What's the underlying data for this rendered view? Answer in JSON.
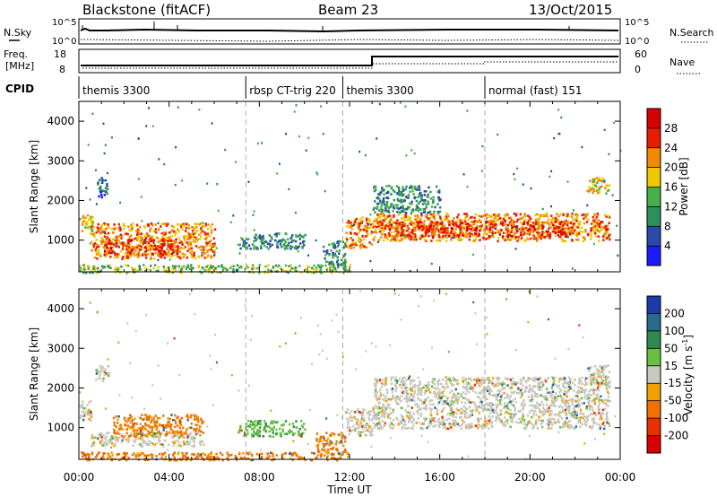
{
  "header": {
    "station": "Blackstone (fitACF)",
    "beam": "Beam 23",
    "date": "13/Oct/2015"
  },
  "noise_panel": {
    "left_label": "N.Sky",
    "right_label": "N.Search",
    "ticks": [
      "10^5",
      "10^0"
    ]
  },
  "freq_panel": {
    "left_label": "Freq.",
    "left_unit": "[MHz]",
    "left_ticks": [
      "18",
      "8"
    ],
    "right_label": "Nave",
    "right_ticks": [
      "60",
      "0"
    ]
  },
  "cpid_panel": {
    "label": "CPID",
    "segments": [
      {
        "label": "themis 3300",
        "start_h": 0.0
      },
      {
        "label": "rbsp CT-trig 220",
        "start_h": 7.4
      },
      {
        "label": "themis 3300",
        "start_h": 11.7
      },
      {
        "label": "normal (fast) 151",
        "start_h": 18.0
      }
    ]
  },
  "x_axis": {
    "label": "Time UT",
    "ticks": [
      "00:00",
      "04:00",
      "08:00",
      "12:00",
      "16:00",
      "20:00",
      "00:00"
    ]
  },
  "colorbar_power": {
    "label": "Power [dB]",
    "ticks": [
      "4",
      "8",
      "12",
      "16",
      "20",
      "24",
      "28"
    ],
    "colors": [
      "#1a1aff",
      "#2a4aa8",
      "#2f8f5a",
      "#46b04a",
      "#f0c800",
      "#f08a00",
      "#e81c00",
      "#d60000"
    ]
  },
  "colorbar_velocity": {
    "label": "Velocity [m s",
    "label_sup": "-1",
    "label_end": "]",
    "ticks": [
      "200",
      "100",
      "50",
      "15",
      "-15",
      "-50",
      "-100",
      "-200"
    ],
    "colors": [
      "#1b3ca8",
      "#2a6a8a",
      "#2e8a4e",
      "#68c040",
      "#c8c8c0",
      "#f0a000",
      "#f07000",
      "#e83000",
      "#d80000"
    ]
  },
  "chart_data": [
    {
      "type": "heatmap",
      "title": "Power",
      "xlabel": "",
      "ylabel": "Slant Range [km]",
      "xlim_hours": [
        0,
        24
      ],
      "ylim_km": [
        200,
        4500
      ],
      "yticks": [
        "1000",
        "2000",
        "3000",
        "4000"
      ],
      "colorbar": "Power [dB]",
      "regions": [
        {
          "t": [
            0.0,
            0.6
          ],
          "r": [
            1200,
            1700
          ],
          "level": 4
        },
        {
          "t": [
            0.8,
            1.3
          ],
          "r": [
            2100,
            2600
          ],
          "level": 1
        },
        {
          "t": [
            0.5,
            6.0
          ],
          "r": [
            550,
            1450
          ],
          "level": 5
        },
        {
          "t": [
            1.0,
            4.5
          ],
          "r": [
            650,
            1050
          ],
          "level": 6
        },
        {
          "t": [
            7.0,
            10.0
          ],
          "r": [
            800,
            1200
          ],
          "level": 2
        },
        {
          "t": [
            10.8,
            11.8
          ],
          "r": [
            400,
            1000
          ],
          "level": 2
        },
        {
          "t": [
            11.8,
            13.0
          ],
          "r": [
            800,
            1600
          ],
          "level": 5
        },
        {
          "t": [
            13.0,
            23.5
          ],
          "r": [
            1000,
            1700
          ],
          "level": 5
        },
        {
          "t": [
            13.5,
            22.0
          ],
          "r": [
            1100,
            1500
          ],
          "level": 6
        },
        {
          "t": [
            13.0,
            16.0
          ],
          "r": [
            1700,
            2400
          ],
          "level": 2
        },
        {
          "t": [
            22.5,
            23.5
          ],
          "r": [
            2200,
            2600
          ],
          "level": 4
        },
        {
          "t": [
            0.0,
            12.0
          ],
          "r": [
            200,
            400
          ],
          "level": 3
        }
      ]
    },
    {
      "type": "heatmap",
      "title": "Velocity",
      "xlabel": "Time UT",
      "ylabel": "Slant Range [km]",
      "xlim_hours": [
        0,
        24
      ],
      "ylim_km": [
        200,
        4500
      ],
      "yticks": [
        "1000",
        "2000",
        "3000",
        "4000"
      ],
      "colorbar": "Velocity [m s-1]",
      "regions": [
        {
          "t": [
            0.0,
            0.6
          ],
          "r": [
            1200,
            1700
          ],
          "vel": 0
        },
        {
          "t": [
            0.7,
            1.3
          ],
          "r": [
            2200,
            2600
          ],
          "vel": 0
        },
        {
          "t": [
            0.5,
            5.5
          ],
          "r": [
            550,
            900
          ],
          "vel": 0
        },
        {
          "t": [
            1.5,
            5.5
          ],
          "r": [
            800,
            1350
          ],
          "vel": -60
        },
        {
          "t": [
            7.0,
            10.0
          ],
          "r": [
            800,
            1200
          ],
          "vel": 40
        },
        {
          "t": [
            10.5,
            11.8
          ],
          "r": [
            400,
            900
          ],
          "vel": -60
        },
        {
          "t": [
            11.8,
            13.0
          ],
          "r": [
            800,
            1500
          ],
          "vel": 0
        },
        {
          "t": [
            13.0,
            23.5
          ],
          "r": [
            1000,
            2300
          ],
          "vel": 0
        },
        {
          "t": [
            22.5,
            23.5
          ],
          "r": [
            2100,
            2600
          ],
          "vel": 0
        },
        {
          "t": [
            0.0,
            12.0
          ],
          "r": [
            200,
            400
          ],
          "vel": -60
        }
      ]
    }
  ]
}
